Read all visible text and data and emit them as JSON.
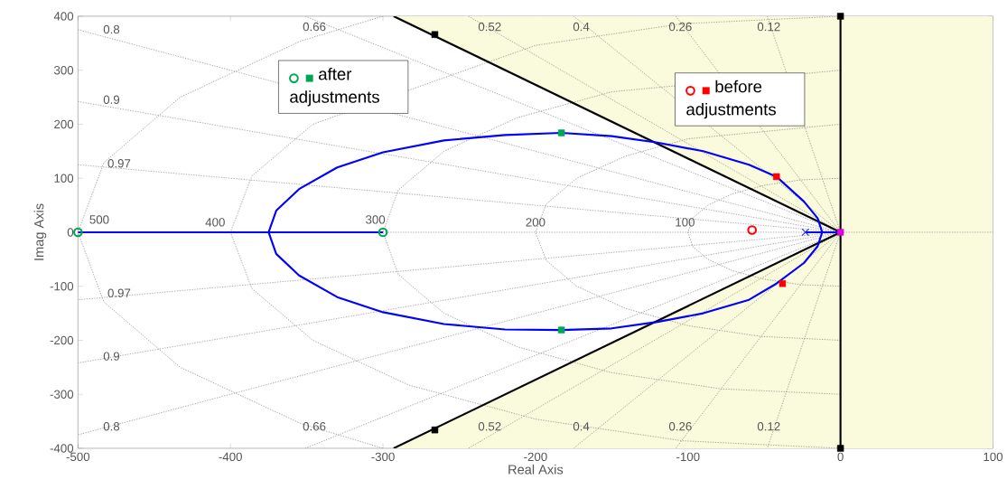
{
  "chart_data": {
    "type": "line",
    "xlabel": "Real Axis",
    "ylabel": "Imag Axis",
    "xlim": [
      -500,
      100
    ],
    "ylim": [
      -400,
      400
    ],
    "xticks": [
      -500,
      -400,
      -300,
      -200,
      -100,
      0,
      100
    ],
    "yticks": [
      -400,
      -300,
      -200,
      -100,
      0,
      100,
      200,
      300,
      400
    ],
    "legend": "top",
    "bands": [
      {
        "axis": "x",
        "from": 0,
        "to": 100,
        "color": "#fafadc"
      }
    ],
    "series": [
      {
        "color": "#8a8a8a",
        "line_style": "dotted",
        "marker": "none",
        "x": [
          0,
          -26,
          -50,
          -71,
          -87,
          -97,
          -100,
          -97,
          -87,
          -71,
          -50,
          -26,
          0
        ],
        "values": [
          100,
          97,
          87,
          71,
          50,
          26,
          0,
          -26,
          -50,
          -71,
          -87,
          -97,
          -100
        ]
      },
      {
        "color": "#8b8b8b",
        "line_style": "dotted",
        "marker": "none",
        "x": [
          0,
          -100,
          -141,
          -173,
          -193,
          -200,
          -193,
          -173,
          -141,
          -100,
          -52,
          0
        ],
        "values": [
          200,
          173,
          141,
          100,
          52,
          0,
          -52,
          -100,
          -141,
          -173,
          -193,
          -200
        ]
      },
      {
        "color": "#8c8c8c",
        "line_style": "dotted",
        "marker": "none",
        "x": [
          0,
          -150,
          -212,
          -260,
          -290,
          -300,
          -290,
          -260,
          -212,
          -150,
          -78,
          0
        ],
        "values": [
          300,
          260,
          212,
          150,
          78,
          0,
          -78,
          -150,
          -212,
          -260,
          -290,
          -300
        ]
      },
      {
        "color": "#8d8d8d",
        "line_style": "dotted",
        "marker": "none",
        "x": [
          0,
          -104,
          -200,
          -346,
          -386,
          -400,
          -386,
          -346,
          -283,
          -200,
          -104,
          0
        ],
        "values": [
          400,
          386,
          346,
          200,
          104,
          0,
          -104,
          -200,
          -283,
          -346,
          -386,
          -400
        ]
      },
      {
        "color": "#8e8e8e",
        "line_style": "dotted",
        "marker": "none",
        "x": [
          -300,
          -354,
          -433,
          -483,
          -500,
          -483,
          -433,
          -354,
          -300
        ],
        "values": [
          400,
          354,
          250,
          129,
          0,
          -129,
          -250,
          -354,
          -400
        ]
      },
      {
        "color": "#8f8f8f",
        "line_style": "dotted",
        "marker": "none",
        "x": [
          -48,
          0,
          -48
        ],
        "values": [
          400,
          0,
          -400
        ]
      },
      {
        "color": "#909090",
        "line_style": "dotted",
        "marker": "none",
        "x": [
          -108,
          0,
          -108
        ],
        "values": [
          400,
          0,
          -400
        ]
      },
      {
        "color": "#919191",
        "line_style": "dotted",
        "marker": "none",
        "x": [
          -175,
          0,
          -175
        ],
        "values": [
          400,
          0,
          -400
        ]
      },
      {
        "color": "#929292",
        "line_style": "dotted",
        "marker": "none",
        "x": [
          -244,
          0,
          -244
        ],
        "values": [
          400,
          0,
          -400
        ]
      },
      {
        "color": "#939393",
        "line_style": "dotted",
        "marker": "none",
        "x": [
          -351,
          0,
          -351
        ],
        "values": [
          400,
          0,
          -400
        ]
      },
      {
        "color": "#949494",
        "line_style": "dotted",
        "marker": "none",
        "x": [
          -500,
          0,
          -500
        ],
        "values": [
          375,
          0,
          -375
        ]
      },
      {
        "color": "#959595",
        "line_style": "dotted",
        "marker": "none",
        "x": [
          -500,
          0,
          -500
        ],
        "values": [
          242,
          0,
          -242
        ]
      },
      {
        "color": "#969696",
        "line_style": "dotted",
        "marker": "none",
        "x": [
          -500,
          0,
          -500
        ],
        "values": [
          125,
          0,
          -125
        ]
      },
      {
        "color": "#979797",
        "line_style": "dotted",
        "marker": "none",
        "x": [
          -500,
          100
        ],
        "values": [
          0,
          0
        ]
      },
      {
        "color": "#000000",
        "line_style": "solid",
        "marker": "none",
        "x": [
          -293,
          0
        ],
        "values": [
          400,
          0
        ],
        "lower": [
          400,
          0
        ],
        "upper": [
          400,
          400
        ]
      },
      {
        "color": "#000000",
        "line_style": "solid",
        "marker": "none",
        "x": [
          -293,
          0
        ],
        "values": [
          -400,
          0
        ],
        "lower": [
          -400,
          -400
        ],
        "upper": [
          -400,
          0
        ]
      },
      {
        "color": "#000000",
        "line_style": "solid",
        "marker": "none",
        "x": [
          0,
          0
        ],
        "values": [
          -400,
          400
        ]
      },
      {
        "color": "#0000ff",
        "line_style": "solid",
        "marker": "none",
        "x": [
          -500,
          -375,
          -370,
          -355,
          -330,
          -300,
          -260,
          -220,
          -183,
          -150,
          -120,
          -90,
          -60,
          -42,
          -24,
          -15,
          -12,
          -23
        ],
        "values": [
          0,
          0,
          40,
          80,
          120,
          148,
          170,
          180,
          184,
          178,
          166,
          150,
          125,
          103,
          57,
          26,
          0,
          0
        ]
      },
      {
        "color": "#0000ff",
        "line_style": "solid",
        "marker": "none",
        "x": [
          -300,
          -375,
          -370,
          -355,
          -330,
          -300,
          -260,
          -220,
          -183,
          -150,
          -120,
          -90,
          -60,
          -42,
          -24,
          -15,
          -12,
          0
        ],
        "values": [
          0,
          0,
          -40,
          -80,
          -120,
          -148,
          -170,
          -180,
          -181,
          -178,
          -166,
          -150,
          -125,
          -95,
          -57,
          -26,
          0,
          0
        ]
      },
      {
        "type": "scatter",
        "color": "#2020ff",
        "marker": "cross",
        "x": [
          -23
        ],
        "values": [
          0
        ]
      },
      {
        "type": "scatter",
        "color": "#000000",
        "marker": "square",
        "x": [
          -266,
          -266,
          0,
          0
        ],
        "values": [
          366,
          -366,
          400,
          -400
        ]
      },
      {
        "type": "scatter",
        "color": "#e000e0",
        "marker": "square",
        "x": [
          0
        ],
        "values": [
          0
        ]
      },
      {
        "type": "scatter",
        "color": "#00a651",
        "marker": "circle",
        "x": [
          -500,
          -300
        ],
        "values": [
          0,
          0
        ]
      },
      {
        "type": "scatter",
        "color": "#00a651",
        "marker": "square",
        "name": "after adjustments",
        "x": [
          -183,
          -183
        ],
        "values": [
          184,
          -181
        ]
      },
      {
        "type": "scatter",
        "color": "#ff0000",
        "marker": "circle",
        "x": [
          -58
        ],
        "values": [
          4
        ]
      },
      {
        "type": "scatter",
        "color": "#ff0000",
        "marker": "square",
        "name": "before adjustments",
        "x": [
          -42,
          -38
        ],
        "values": [
          103,
          -95
        ]
      }
    ],
    "annotations": [
      "0.8",
      "0.66",
      "0.52",
      "0.4",
      "0.26",
      "0.12",
      "0.9",
      "0.97",
      "0.97",
      "0.9",
      "0.8",
      "0.66",
      "0.52",
      "0.4",
      "0.26",
      "0.12",
      "500",
      "400",
      "300",
      "200",
      "100"
    ]
  }
}
